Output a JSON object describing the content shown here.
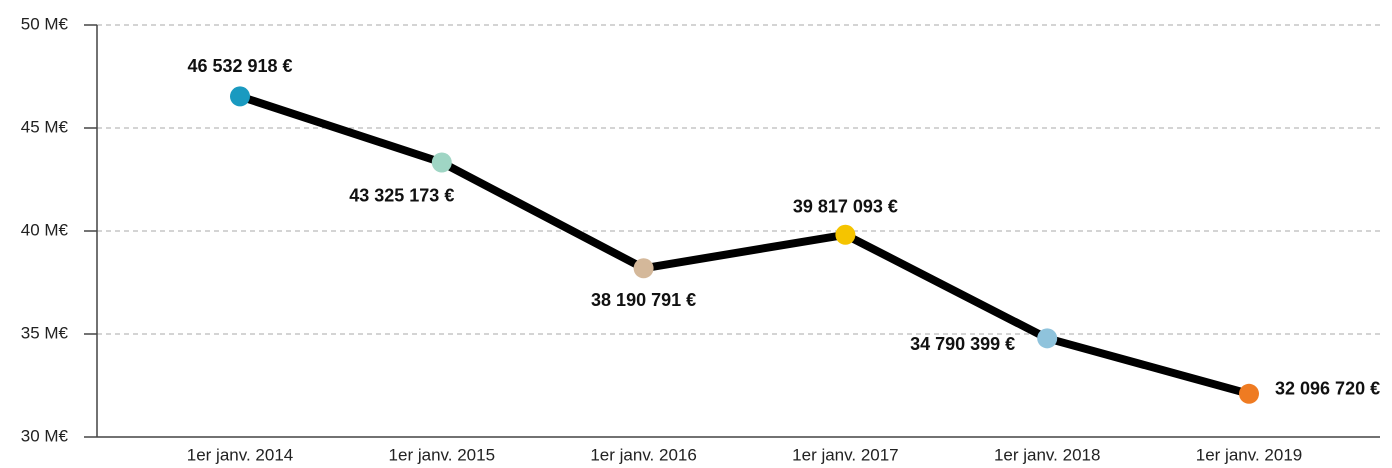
{
  "chart_data": {
    "type": "line",
    "categories": [
      "1er janv. 2014",
      "1er janv. 2015",
      "1er janv. 2016",
      "1er janv. 2017",
      "1er janv. 2018",
      "1er janv. 2019"
    ],
    "values": [
      46.532918,
      43.325173,
      38.190791,
      39.817093,
      34.790399,
      32.09672
    ],
    "value_labels": [
      "46 532 918 €",
      "43 325 173 €",
      "38 190 791 €",
      "39 817 093 €",
      "34 790 399 €",
      "32 096 720 €"
    ],
    "color": "#000000",
    "point_colors": [
      "#1a9ac0",
      "#9fd5c4",
      "#d4b89a",
      "#f5c400",
      "#8fc3dc",
      "#ef7b22"
    ],
    "ylim": [
      30,
      50
    ],
    "yticks": [
      {
        "value": 30,
        "label": "30 M€"
      },
      {
        "value": 35,
        "label": "35 M€"
      },
      {
        "value": 40,
        "label": "40 M€"
      },
      {
        "value": 45,
        "label": "45 M€"
      },
      {
        "value": 50,
        "label": "50 M€"
      }
    ],
    "grid": true
  }
}
